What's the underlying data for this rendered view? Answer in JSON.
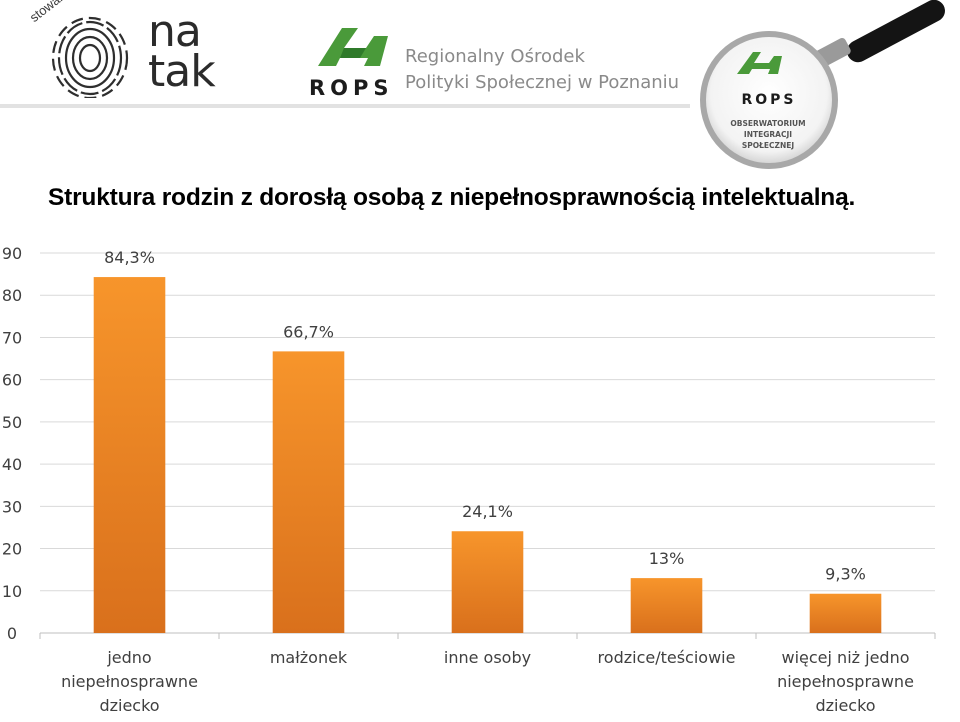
{
  "header": {
    "natak": {
      "arc_text": "stowarzyszenie",
      "word_line1": "na",
      "word_line2": "tak"
    },
    "rops": {
      "word": "ROPS",
      "name_line1": "Regionalny Ośrodek",
      "name_line2": "Polityki Społecznej w Poznaniu"
    },
    "observatory": {
      "rops": "ROPS",
      "line1": "OBSERWATORIUM",
      "line2": "INTEGRACJI",
      "line3": "SPOŁECZNEJ"
    }
  },
  "colors": {
    "bar_top": "#f7952b",
    "bar_bottom": "#d9701c",
    "logo_green": "#4a9a3a",
    "grid": "#d9d9d9"
  },
  "chart_data": {
    "type": "bar",
    "title": "Struktura rodzin z dorosłą osobą z niepełnosprawnością intelektualną.",
    "categories": [
      [
        "jedno",
        "niepełnosprawne",
        "dziecko"
      ],
      [
        "małżonek"
      ],
      [
        "inne osoby"
      ],
      [
        "rodzice/teściowie"
      ],
      [
        "więcej niż jedno",
        "niepełnosprawne",
        "dziecko"
      ]
    ],
    "values": [
      84.3,
      66.7,
      24.1,
      13,
      9.3
    ],
    "data_labels": [
      "84,3%",
      "66,7%",
      "24,1%",
      "13%",
      "9,3%"
    ],
    "yticks": [
      "0",
      "10",
      "20",
      "30",
      "40",
      "50",
      "60",
      "70",
      "80",
      "90"
    ],
    "ylim": [
      0,
      90
    ],
    "grid": true
  }
}
